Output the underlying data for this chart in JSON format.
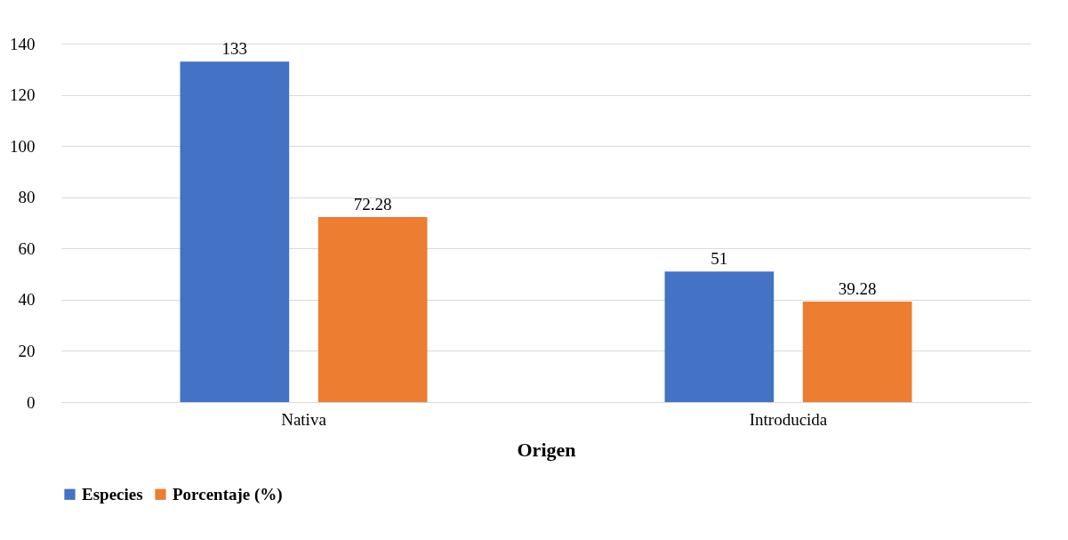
{
  "chart_data": {
    "type": "bar",
    "xlabel": "Origen",
    "categories": [
      "Nativa",
      "Introducida"
    ],
    "series": [
      {
        "name": "Especies",
        "color": "#4472c4",
        "values": [
          133,
          51
        ]
      },
      {
        "name": "Porcentaje (%)",
        "color": "#ed7d31",
        "values": [
          72.28,
          39.28
        ]
      }
    ],
    "ylim": [
      0,
      140
    ],
    "yticks": [
      0,
      20,
      40,
      60,
      80,
      100,
      120,
      140
    ],
    "grid": "y",
    "legend": "bottom",
    "data_labels": true
  }
}
